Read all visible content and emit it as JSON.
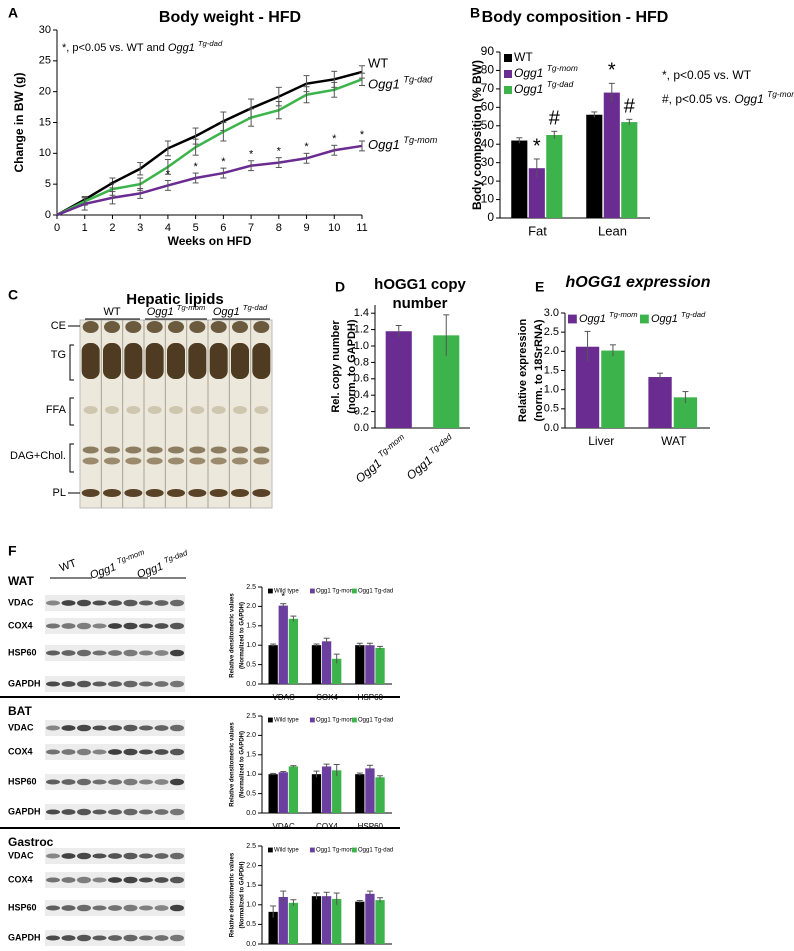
{
  "panel_letters": [
    "A",
    "B",
    "C",
    "D",
    "E",
    "F"
  ],
  "chart_data": [
    {
      "type": "line",
      "title": "Body weight - HFD",
      "xlabel": "Weeks on HFD",
      "ylabel": "Change in BW (g)",
      "annotation": "*, p<0.05 vs. WT and Ogg1 Tg-dad",
      "name_style": "superscript",
      "x": [
        0,
        1,
        2,
        3,
        4,
        5,
        6,
        7,
        8,
        9,
        10,
        11
      ],
      "xlim": [
        0,
        11
      ],
      "xticks": [
        0,
        1,
        2,
        3,
        4,
        5,
        6,
        7,
        8,
        9,
        10,
        11
      ],
      "ylim": [
        0,
        30
      ],
      "yticks": [
        0,
        5,
        10,
        15,
        20,
        25,
        30
      ],
      "series": [
        {
          "name": "WT",
          "color": "#000000",
          "values": [
            0,
            2.5,
            5.2,
            7.5,
            10.8,
            12.8,
            15.2,
            17.3,
            19.2,
            21.3,
            22,
            23.2
          ],
          "errors": [
            0,
            0.5,
            0.8,
            1,
            1.2,
            1.3,
            1.5,
            1.5,
            1.5,
            1.3,
            1.3,
            1
          ]
        },
        {
          "name": "Ogg1 Tg-dad",
          "color": "#3cb44b",
          "values": [
            0,
            2.2,
            4.2,
            5,
            7.8,
            11,
            13.5,
            15.8,
            17,
            19.5,
            20.3,
            22
          ],
          "errors": [
            0,
            0.6,
            1,
            1,
            1.2,
            1.3,
            1.5,
            1.4,
            1.4,
            1.3,
            1.2,
            1
          ]
        },
        {
          "name": "Ogg1 Tg-mom",
          "color": "#6b2c91",
          "values": [
            0,
            1.8,
            2.8,
            3.5,
            4.8,
            6,
            6.8,
            8,
            8.5,
            9.2,
            10.5,
            11.2
          ],
          "errors": [
            0,
            1,
            1,
            0.8,
            0.8,
            0.8,
            0.8,
            0.8,
            0.8,
            0.8,
            0.8,
            0.8
          ],
          "annotations": [
            null,
            null,
            "*",
            null,
            "*",
            "*",
            "*",
            "*",
            "*",
            "*",
            "*",
            "*"
          ]
        }
      ]
    },
    {
      "type": "bar",
      "title": "Body composition - HFD",
      "ylabel": "Body composition (% BW)",
      "legend": "top-left",
      "name_style": "superscript",
      "notes": [
        "*, p<0.05 vs. WT",
        "#, p<0.05 vs. Ogg1 Tg-mom"
      ],
      "categories": [
        "Fat",
        "Lean"
      ],
      "ylim": [
        0,
        90
      ],
      "yticks": [
        0,
        10,
        20,
        30,
        40,
        50,
        60,
        70,
        80,
        90
      ],
      "series": [
        {
          "name": "WT",
          "color": "#000000",
          "values": [
            42,
            56
          ],
          "errors": [
            1.5,
            1.5
          ]
        },
        {
          "name": "Ogg1 Tg-mom",
          "color": "#6b2c91",
          "values": [
            27,
            68
          ],
          "errors": [
            5,
            5
          ],
          "annotations": [
            "*",
            "*"
          ]
        },
        {
          "name": "Ogg1 Tg-dad",
          "color": "#3cb44b",
          "values": [
            45,
            52
          ],
          "errors": [
            2,
            1.5
          ],
          "annotations": [
            "#",
            "#"
          ]
        }
      ]
    },
    {
      "type": "bar",
      "title": [
        "hOGG1 copy",
        "number"
      ],
      "ylabel": [
        "Rel. copy number",
        "(norm. to GAPDH)"
      ],
      "name_style": "superscript",
      "categories": [
        "Ogg1 Tg-mom",
        "Ogg1 Tg-dad"
      ],
      "values": [
        1.18,
        1.13
      ],
      "errors": [
        0.07,
        0.25
      ],
      "colors": [
        "#6b2c91",
        "#3cb44b"
      ],
      "ylim": [
        0,
        1.5
      ],
      "yticks": [
        {
          "value": 0,
          "label": "0.0"
        },
        0.2,
        0.4,
        0.6,
        0.8,
        {
          "value": 1,
          "label": "1.0"
        },
        1.2,
        1.4
      ]
    },
    {
      "type": "bar",
      "title": "hOGG1 expression",
      "ylabel": [
        "Relative expression",
        "(norm. to 18SrRNA)"
      ],
      "legend": "top",
      "name_style": "superscript",
      "categories": [
        "Liver",
        "WAT"
      ],
      "ylim": [
        0,
        3
      ],
      "yticks": [
        {
          "value": 0,
          "label": "0.0"
        },
        0.5,
        {
          "value": 1,
          "label": "1.0"
        },
        1.5,
        {
          "value": 2,
          "label": "2.0"
        },
        2.5,
        {
          "value": 3,
          "label": "3.0"
        }
      ],
      "series": [
        {
          "name": "Ogg1 Tg-mom",
          "color": "#6b2c91",
          "values": [
            2.12,
            1.33
          ],
          "errors": [
            0.4,
            0.1
          ]
        },
        {
          "name": "Ogg1 Tg-dad",
          "color": "#3cb44b",
          "values": [
            2.02,
            0.8
          ],
          "errors": [
            0.15,
            0.15
          ]
        }
      ]
    },
    {
      "type": "bar",
      "ylabel": [
        "Relative densitometric values",
        "(Normalized to GAPDH)"
      ],
      "legend": "top",
      "categories": [
        "VDAC",
        "COX4",
        "HSP60"
      ],
      "ylim": [
        0,
        2.5
      ],
      "yticks": [
        {
          "value": 0,
          "label": "0.0"
        },
        0.5,
        {
          "value": 1,
          "label": "1.0"
        },
        1.5,
        {
          "value": 2,
          "label": "2.0"
        },
        2.5
      ],
      "series": [
        {
          "name": "Wild type",
          "color": "#000000",
          "values": [
            1,
            1,
            1
          ],
          "errors": [
            0.03,
            0.03,
            0.05
          ]
        },
        {
          "name": "Ogg1 Tg-mom",
          "color": "#6a3fa0",
          "values": [
            2.02,
            1.1,
            1.0
          ],
          "errors": [
            0.05,
            0.08,
            0.05
          ],
          "annotations": [
            "*",
            null,
            null
          ]
        },
        {
          "name": "Ogg1 Tg-dad",
          "color": "#3cb44b",
          "values": [
            1.68,
            0.65,
            0.93
          ],
          "errors": [
            0.07,
            0.12,
            0.04
          ]
        }
      ]
    },
    {
      "type": "bar",
      "ylabel": [
        "Relative densitometric values",
        "(Normalized to GAPDH)"
      ],
      "legend": "top",
      "categories": [
        "VDAC",
        "COX4",
        "HSP60"
      ],
      "ylim": [
        0,
        2.5
      ],
      "yticks": [
        {
          "value": 0,
          "label": "0.0"
        },
        0.5,
        {
          "value": 1,
          "label": "1.0"
        },
        1.5,
        {
          "value": 2,
          "label": "2.0"
        },
        2.5
      ],
      "series": [
        {
          "name": "Wild type",
          "color": "#000000",
          "values": [
            1,
            1,
            1
          ],
          "errors": [
            0.02,
            0.08,
            0.03
          ]
        },
        {
          "name": "Ogg1 Tg-mom",
          "color": "#6a3fa0",
          "values": [
            1.05,
            1.2,
            1.15
          ],
          "errors": [
            0.02,
            0.06,
            0.08
          ]
        },
        {
          "name": "Ogg1 Tg-dad",
          "color": "#3cb44b",
          "values": [
            1.2,
            1.1,
            0.92
          ],
          "errors": [
            0.02,
            0.15,
            0.04
          ]
        }
      ]
    },
    {
      "type": "bar",
      "ylabel": [
        "Relative densitometric values",
        "(Normalized to GAPDH)"
      ],
      "legend": "top",
      "categories": [
        "VDAC",
        "COX4",
        "HSP60"
      ],
      "ylim": [
        0,
        2.5
      ],
      "yticks": [
        {
          "value": 0,
          "label": "0.0"
        },
        0.5,
        {
          "value": 1,
          "label": "1.0"
        },
        1.5,
        {
          "value": 2,
          "label": "2.0"
        },
        2.5
      ],
      "series": [
        {
          "name": "Wild type",
          "color": "#000000",
          "values": [
            0.82,
            1.22,
            1.08
          ],
          "errors": [
            0.15,
            0.08,
            0.03
          ]
        },
        {
          "name": "Ogg1 Tg-mom",
          "color": "#6a3fa0",
          "values": [
            1.2,
            1.22,
            1.28
          ],
          "errors": [
            0.15,
            0.1,
            0.07
          ]
        },
        {
          "name": "Ogg1 Tg-dad",
          "color": "#3cb44b",
          "values": [
            1.05,
            1.15,
            1.12
          ],
          "errors": [
            0.08,
            0.15,
            0.06
          ]
        }
      ]
    }
  ],
  "hepatic_lipids": {
    "title": "Hepatic lipids",
    "groups": [
      "WT",
      "Ogg1 Tg-mom",
      "Ogg1 Tg-dad"
    ],
    "bands": [
      "CE",
      "TG",
      "FFA",
      "DAG+Chol.",
      "PL"
    ]
  },
  "blots": {
    "groups": [
      "WT",
      "Ogg1 Tg-mom",
      "Ogg1 Tg-dad"
    ],
    "tissues": [
      {
        "name": "WAT",
        "proteins": [
          "VDAC",
          "COX4",
          "HSP60",
          "GAPDH"
        ]
      },
      {
        "name": "BAT",
        "proteins": [
          "VDAC",
          "COX4",
          "HSP60",
          "GAPDH"
        ]
      },
      {
        "name": "Gastroc",
        "proteins": [
          "VDAC",
          "COX4",
          "HSP60",
          "GAPDH"
        ]
      }
    ]
  }
}
